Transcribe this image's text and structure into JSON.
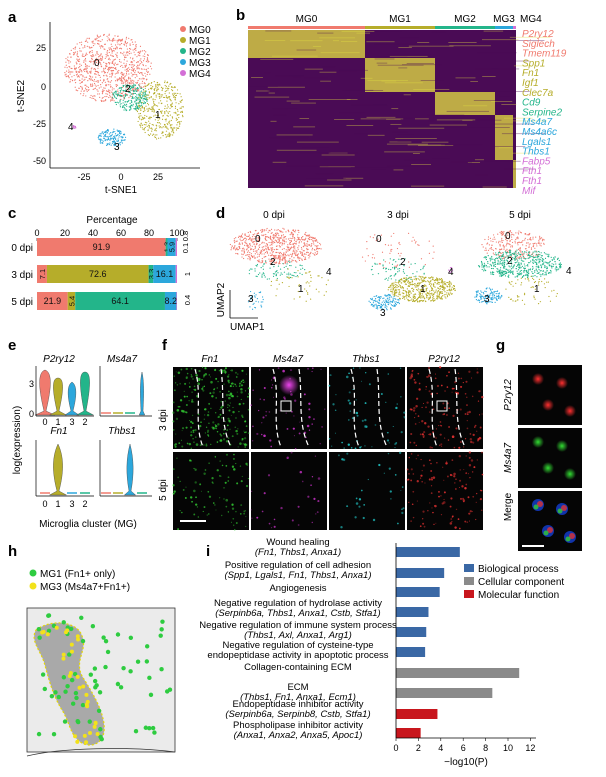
{
  "colors": {
    "MG0": "#f07a6e",
    "MG1": "#b6ad2a",
    "MG2": "#23b58a",
    "MG3": "#2ca7dc",
    "MG4": "#d36fd6",
    "heat_low": "#4a0b55",
    "heat_high": "#e5e242",
    "bp": "#3a68a5",
    "cc": "#8a8a8a",
    "mf": "#c8161d"
  },
  "panel_labels": [
    "a",
    "b",
    "c",
    "d",
    "e",
    "f",
    "g",
    "h",
    "i"
  ],
  "panel_a": {
    "xlabel": "t-SNE1",
    "ylabel": "t-SNE2",
    "xticks": [
      "-25",
      "0",
      "25"
    ],
    "yticks": [
      "25",
      "0",
      "-25",
      "-50"
    ],
    "legend": [
      "MG0",
      "MG1",
      "MG2",
      "MG3",
      "MG4"
    ],
    "cluster_labels": [
      "0",
      "1",
      "2",
      "3",
      "4"
    ]
  },
  "panel_b": {
    "columns": [
      "MG0",
      "MG1",
      "MG2",
      "MG3",
      "MG4"
    ],
    "genes": [
      {
        "name": "P2ry12",
        "cluster": "MG0"
      },
      {
        "name": "Siglech",
        "cluster": "MG0"
      },
      {
        "name": "Tmem119",
        "cluster": "MG0"
      },
      {
        "name": "Spp1",
        "cluster": "MG1"
      },
      {
        "name": "Fn1",
        "cluster": "MG1"
      },
      {
        "name": "Igf1",
        "cluster": "MG1"
      },
      {
        "name": "Clec7a",
        "cluster": "MG1"
      },
      {
        "name": "Cd9",
        "cluster": "MG2"
      },
      {
        "name": "Serpine2",
        "cluster": "MG2"
      },
      {
        "name": "Ms4a7",
        "cluster": "MG3"
      },
      {
        "name": "Ms4a6c",
        "cluster": "MG3"
      },
      {
        "name": "Lgals1",
        "cluster": "MG3"
      },
      {
        "name": "Thbs1",
        "cluster": "MG3"
      },
      {
        "name": "Fabp5",
        "cluster": "MG4"
      },
      {
        "name": "Fth1",
        "cluster": "MG4"
      },
      {
        "name": "Fth1",
        "cluster": "MG4"
      },
      {
        "name": "Mif",
        "cluster": "MG4"
      }
    ]
  },
  "chart_data": {
    "type": "bar",
    "stacked": true,
    "orientation": "horizontal",
    "title": "Percentage",
    "xlim": [
      0,
      100
    ],
    "xticks": [
      "0",
      "20",
      "40",
      "60",
      "80",
      "100"
    ],
    "categories": [
      "0 dpi",
      "3 dpi",
      "5 dpi"
    ],
    "series": [
      {
        "name": "MG0",
        "values": [
          91.9,
          7.1,
          21.9
        ],
        "labels": [
          "91.9",
          "7.1",
          "21.9"
        ]
      },
      {
        "name": "MG1",
        "values": [
          0,
          72.6,
          5.4
        ],
        "labels": [
          "",
          "72.6",
          "5.4"
        ]
      },
      {
        "name": "MG2",
        "values": [
          1.3,
          3.3,
          64.1
        ],
        "labels": [
          "1.3",
          "3.3",
          "64.1"
        ]
      },
      {
        "name": "MG3",
        "values": [
          5.9,
          16.1,
          8.2
        ],
        "labels": [
          "5.9",
          "16.1",
          "8.2"
        ]
      },
      {
        "name": "MG4",
        "values": [
          0.9,
          0.9,
          0.4
        ],
        "labels": [
          "",
          "",
          ""
        ]
      }
    ],
    "outside_labels": [
      "0.1",
      "0.8",
      "1",
      "0.4"
    ]
  },
  "panel_d": {
    "titles": [
      "0 dpi",
      "3 dpi",
      "5 dpi"
    ],
    "xlabel": "UMAP1",
    "ylabel": "UMAP2",
    "cluster_labels": [
      "0",
      "1",
      "2",
      "3",
      "4"
    ]
  },
  "panel_e": {
    "genes_top": [
      "P2ry12",
      "Ms4a7"
    ],
    "genes_bottom": [
      "Fn1",
      "Thbs1"
    ],
    "ylabel": "log(expression)",
    "xlabel": "Microglia cluster (MG)",
    "xticks": [
      "0",
      "1",
      "3",
      "2"
    ],
    "yticks": [
      "3",
      "0"
    ]
  },
  "panel_f": {
    "columns": [
      "Fn1",
      "Ms4a7",
      "Thbs1",
      "P2ry12"
    ],
    "rows": [
      "3 dpi",
      "5 dpi"
    ]
  },
  "panel_g": {
    "rows": [
      "P2ry12",
      "Ms4a7",
      "Merge"
    ]
  },
  "panel_h": {
    "legend": [
      {
        "label": "MG1 (Fn1+ only)",
        "color": "#2ecc40"
      },
      {
        "label": "MG3 (Ms4a7+Fn1+)",
        "color": "#f2e21b"
      }
    ]
  },
  "panel_i": {
    "xlabel": "−log10(P)",
    "xticks": [
      "0",
      "2",
      "4",
      "6",
      "8",
      "10",
      "12"
    ],
    "legend": [
      "Biological process",
      "Cellular component",
      "Molecular function"
    ],
    "terms": [
      {
        "title": "Wound healing",
        "genes": "(Fn1, Thbs1, Anxa1)",
        "value": 5.7,
        "type": "bp"
      },
      {
        "title": "Positive regulation of cell adhesion",
        "genes": "(Spp1, Lgals1, Fn1, Thbs1, Anxa1)",
        "value": 4.3,
        "type": "bp"
      },
      {
        "title": "Angiogenesis",
        "genes": "",
        "value": 3.9,
        "type": "bp"
      },
      {
        "title": "Negative regulation of hydrolase activity",
        "genes": "(Serpinb6a, Thbs1, Anxa1, Cstb, Stfa1)",
        "value": 2.9,
        "type": "bp"
      },
      {
        "title": "Negative regulation of immune system process",
        "genes": "(Thbs1, Axl, Anxa1, Arg1)",
        "value": 2.7,
        "type": "bp"
      },
      {
        "title": "Negative regulation of cysteine-type",
        "title2": "endopeptidase activity in apoptotic process",
        "genes": "",
        "value": 2.6,
        "type": "bp"
      },
      {
        "title": "Collagen-containing ECM",
        "genes": "",
        "value": 11.0,
        "type": "cc"
      },
      {
        "title": "ECM",
        "genes": "(Thbs1, Fn1, Anxa1, Ecm1)",
        "value": 8.6,
        "type": "cc"
      },
      {
        "title": "Endopeptidase inhibitor activity",
        "genes": "(Serpinb6a, Serpinb8, Cstb, Stfa1)",
        "value": 3.7,
        "type": "mf"
      },
      {
        "title": "Phospholipase inhibitor activity",
        "genes": "(Anxa1, Anxa2, Anxa5, Apoc1)",
        "value": 2.2,
        "type": "mf"
      }
    ]
  }
}
